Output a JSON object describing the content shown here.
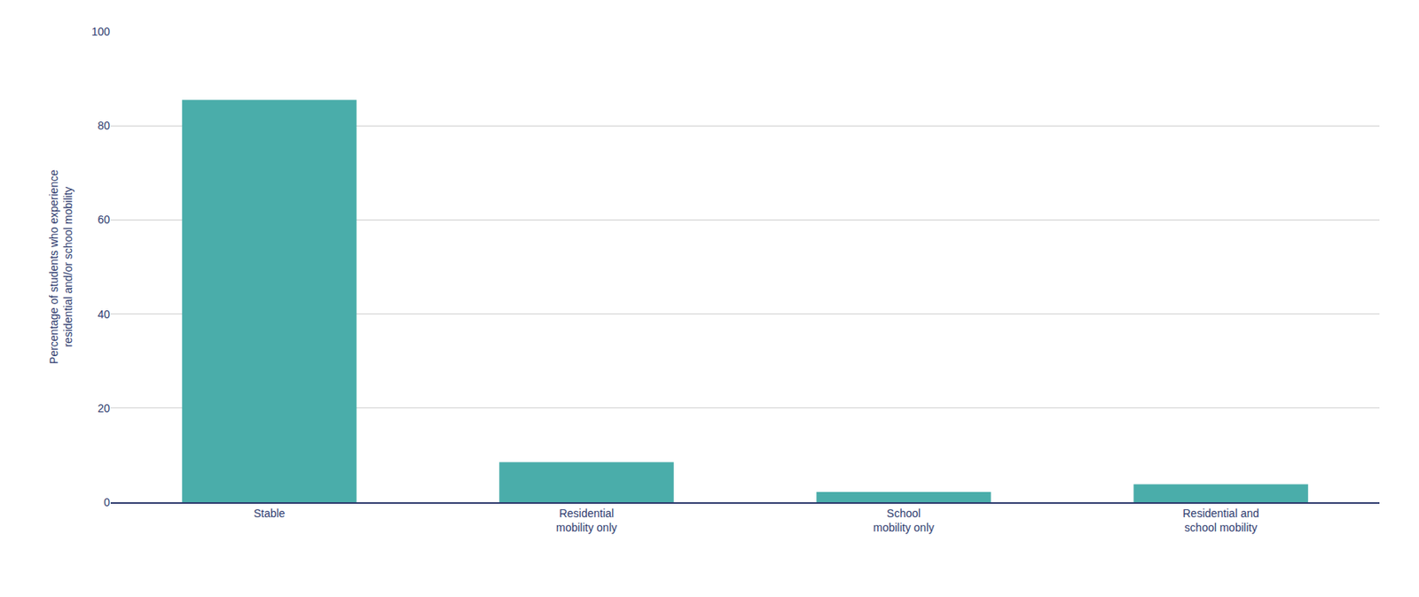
{
  "chart_data": {
    "type": "bar",
    "categories": [
      "Stable",
      "Residential\nmobility only",
      "School\nmobility only",
      "Residential and\nschool mobility"
    ],
    "values": [
      85.5,
      8.5,
      2.2,
      3.8
    ],
    "color": "#4aadaa",
    "ylabel": "Percentage of students who experience\nresidential and/or school mobility",
    "ylim": [
      0,
      100
    ],
    "yticks": [
      0,
      20,
      40,
      60,
      80,
      100
    ],
    "grid": true
  }
}
